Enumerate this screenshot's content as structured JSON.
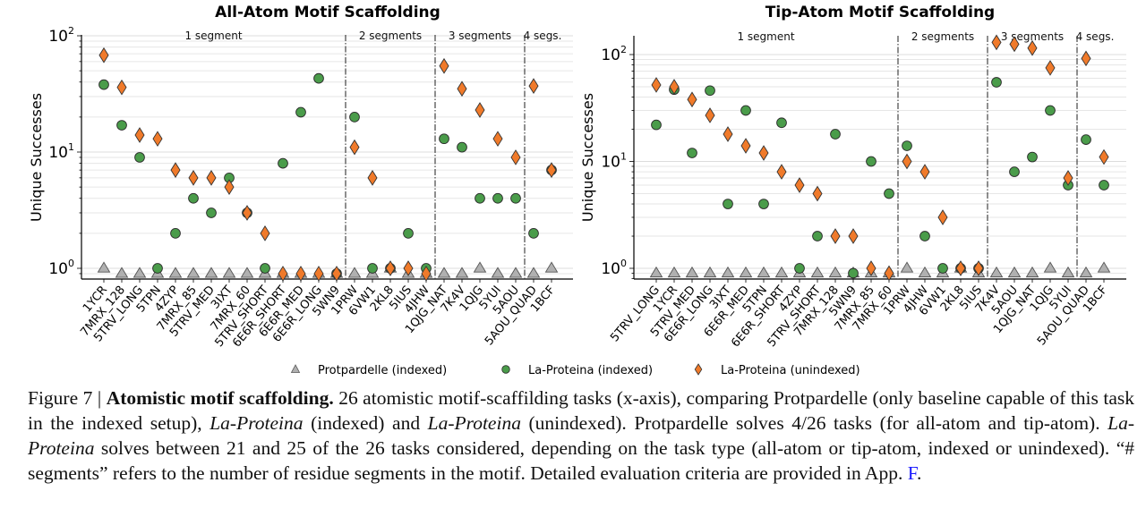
{
  "chart_data": [
    {
      "type": "scatter",
      "title": "All-Atom Motif Scaffolding",
      "xlabel": "",
      "ylabel": "Unique Successes",
      "yscale": "log",
      "ylim": [
        0.85,
        100
      ],
      "yticks": [
        {
          "base": "10",
          "exp": "0"
        },
        {
          "base": "10",
          "exp": "1"
        },
        {
          "base": "10",
          "exp": "2"
        }
      ],
      "grid": "horizontal minor and major",
      "zero_plotted_at": 0.9,
      "groups": [
        {
          "label": "1 segment",
          "count": 14
        },
        {
          "label": "2 segments",
          "count": 5
        },
        {
          "label": "3 segments",
          "count": 5
        },
        {
          "label": "4 segs.",
          "count": 2
        }
      ],
      "categories": [
        "1YCR",
        "7MRX_128",
        "5TRV_LONG",
        "5TPN",
        "4ZYP",
        "7MRX_85",
        "5TRV_MED",
        "3IXT",
        "7MRX_60",
        "5TRV_SHORT",
        "6E6R_SHORT",
        "6E6R_MED",
        "6E6R_LONG",
        "5WN9",
        "1PRW",
        "6VW1",
        "2KL8",
        "5IUS",
        "4JHW",
        "1QJG_NAT",
        "7K4V",
        "1QJG",
        "5YUI",
        "5AOU",
        "5AOU_QUAD",
        "1BCF"
      ],
      "series": [
        {
          "name": "Protpardelle (indexed)",
          "marker": "triangle",
          "color": "#b0b0b0",
          "values": [
            1,
            0,
            0,
            0,
            0,
            0,
            0,
            0,
            0,
            0,
            0,
            0,
            0,
            0,
            0,
            0,
            1,
            0,
            0,
            0,
            0,
            1,
            0,
            0,
            0,
            1
          ]
        },
        {
          "name": "La-Proteina (indexed)",
          "marker": "circle",
          "color": "#4a9c4a",
          "values": [
            38,
            17,
            9,
            1,
            2,
            4,
            3,
            6,
            3,
            1,
            8,
            22,
            43,
            0,
            20,
            1,
            1,
            2,
            1,
            13,
            11,
            4,
            4,
            4,
            2,
            7
          ]
        },
        {
          "name": "La-Proteina (unindexed)",
          "marker": "diamond",
          "color": "#f07a2a",
          "values": [
            68,
            36,
            14,
            13,
            7,
            6,
            6,
            5,
            3,
            2,
            0,
            0,
            0,
            0,
            11,
            6,
            1,
            1,
            0,
            55,
            35,
            23,
            13,
            9,
            37,
            7
          ]
        }
      ]
    },
    {
      "type": "scatter",
      "title": "Tip-Atom Motif Scaffolding",
      "xlabel": "",
      "ylabel": "Unique Successes",
      "yscale": "log",
      "ylim": [
        0.85,
        160
      ],
      "yticks": [
        {
          "base": "10",
          "exp": "0"
        },
        {
          "base": "10",
          "exp": "1"
        },
        {
          "base": "10",
          "exp": "2"
        }
      ],
      "grid": "horizontal minor and major",
      "zero_plotted_at": 0.9,
      "groups": [
        {
          "label": "1 segment",
          "count": 14
        },
        {
          "label": "2 segments",
          "count": 5
        },
        {
          "label": "3 segments",
          "count": 5
        },
        {
          "label": "4 segs.",
          "count": 2
        }
      ],
      "categories": [
        "5TRV_LONG",
        "1YCR",
        "5TRV_MED",
        "6E6R_LONG",
        "3IXT",
        "6E6R_MED",
        "5TPN",
        "6E6R_SHORT",
        "4ZYP",
        "5TRV_SHORT",
        "7MRX_128",
        "5WN9",
        "7MRX_85",
        "7MRX_60",
        "1PRW",
        "4JHW",
        "6VW1",
        "2KL8",
        "5IUS",
        "7K4V",
        "5AOU",
        "1QJG_NAT",
        "1QJG",
        "5YUI",
        "5AOU_QUAD",
        "1BCF"
      ],
      "series": [
        {
          "name": "Protpardelle (indexed)",
          "marker": "triangle",
          "color": "#b0b0b0",
          "values": [
            0,
            0,
            0,
            0,
            0,
            0,
            0,
            0,
            0,
            0,
            0,
            0,
            0,
            0,
            1,
            0,
            0,
            1,
            0,
            0,
            0,
            0,
            1,
            0,
            0,
            1
          ]
        },
        {
          "name": "La-Proteina (indexed)",
          "marker": "circle",
          "color": "#4a9c4a",
          "values": [
            22,
            47,
            12,
            46,
            4,
            30,
            4,
            23,
            1,
            2,
            18,
            0,
            10,
            5,
            14,
            2,
            1,
            1,
            1,
            55,
            8,
            11,
            30,
            6,
            16,
            6
          ]
        },
        {
          "name": "La-Proteina (unindexed)",
          "marker": "diamond",
          "color": "#f07a2a",
          "values": [
            52,
            50,
            38,
            27,
            18,
            14,
            12,
            8,
            6,
            5,
            2,
            2,
            1,
            0,
            10,
            8,
            3,
            1,
            1,
            130,
            125,
            115,
            75,
            7,
            92,
            11
          ]
        }
      ]
    }
  ],
  "legend": {
    "placement": "bottom-center",
    "items": [
      {
        "label": "Protpardelle (indexed)",
        "marker": "triangle",
        "color": "#b0b0b0"
      },
      {
        "label": "La-Proteina (indexed)",
        "marker": "circle",
        "color": "#4a9c4a"
      },
      {
        "label": "La-Proteina (unindexed)",
        "marker": "diamond",
        "color": "#f07a2a"
      }
    ]
  },
  "caption": {
    "figure_label": "Figure 7",
    "separator": "|",
    "title": "Atomistic motif scaffolding.",
    "text_1": " 26 atomistic motif-scaffilding tasks (x-axis), comparing Protpardelle (only baseline capable of this task in the indexed setup), ",
    "italic_1": "La-Proteina",
    "text_2": " (indexed) and ",
    "italic_2": "La-Proteina",
    "text_3": " (unindexed). Protpardelle solves 4/26 tasks (for all-atom and tip-atom). ",
    "italic_3": "La-Proteina",
    "text_4": " solves between 21 and 25 of the 26 tasks considered, depending on the task type (all-atom or tip-atom, indexed or unindexed). “# segments” refers to the number of residue segments in the motif. Detailed evaluation criteria are provided in App. ",
    "link": "F",
    "text_5": "."
  }
}
